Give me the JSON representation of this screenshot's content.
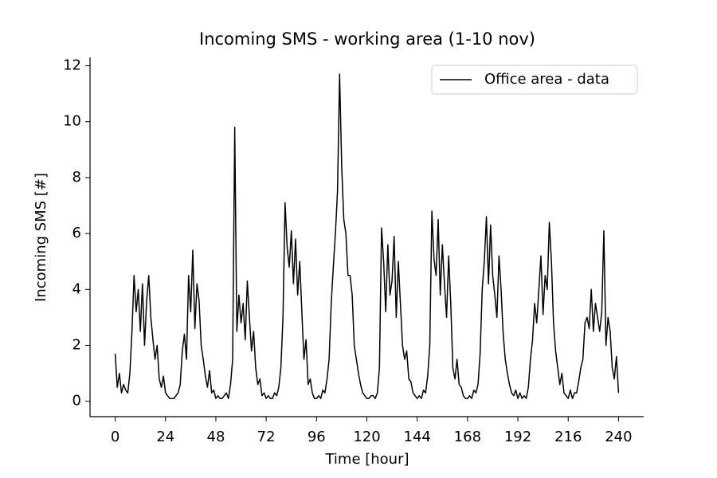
{
  "chart_data": {
    "type": "line",
    "title": "Incoming SMS - working area (1-10 nov)",
    "xlabel": "Time [hour]",
    "ylabel": "Incoming SMS [#]",
    "xlim": [
      -12,
      252
    ],
    "ylim": [
      -0.55,
      12.3
    ],
    "xticks": [
      0,
      24,
      48,
      72,
      96,
      120,
      144,
      168,
      192,
      216,
      240
    ],
    "yticks": [
      0,
      2,
      4,
      6,
      8,
      10,
      12
    ],
    "legend": "upper right",
    "x": [
      0,
      1,
      2,
      3,
      4,
      5,
      6,
      7,
      8,
      9,
      10,
      11,
      12,
      13,
      14,
      15,
      16,
      17,
      18,
      19,
      20,
      21,
      22,
      23,
      24,
      25,
      26,
      27,
      28,
      29,
      30,
      31,
      32,
      33,
      34,
      35,
      36,
      37,
      38,
      39,
      40,
      41,
      42,
      43,
      44,
      45,
      46,
      47,
      48,
      49,
      50,
      51,
      52,
      53,
      54,
      55,
      56,
      57,
      58,
      59,
      60,
      61,
      62,
      63,
      64,
      65,
      66,
      67,
      68,
      69,
      70,
      71,
      72,
      73,
      74,
      75,
      76,
      77,
      78,
      79,
      80,
      81,
      82,
      83,
      84,
      85,
      86,
      87,
      88,
      89,
      90,
      91,
      92,
      93,
      94,
      95,
      96,
      97,
      98,
      99,
      100,
      101,
      102,
      103,
      104,
      105,
      106,
      107,
      108,
      109,
      110,
      111,
      112,
      113,
      114,
      115,
      116,
      117,
      118,
      119,
      120,
      121,
      122,
      123,
      124,
      125,
      126,
      127,
      128,
      129,
      130,
      131,
      132,
      133,
      134,
      135,
      136,
      137,
      138,
      139,
      140,
      141,
      142,
      143,
      144,
      145,
      146,
      147,
      148,
      149,
      150,
      151,
      152,
      153,
      154,
      155,
      156,
      157,
      158,
      159,
      160,
      161,
      162,
      163,
      164,
      165,
      166,
      167,
      168,
      169,
      170,
      171,
      172,
      173,
      174,
      175,
      176,
      177,
      178,
      179,
      180,
      181,
      182,
      183,
      184,
      185,
      186,
      187,
      188,
      189,
      190,
      191,
      192,
      193,
      194,
      195,
      196,
      197,
      198,
      199,
      200,
      201,
      202,
      203,
      204,
      205,
      206,
      207,
      208,
      209,
      210,
      211,
      212,
      213,
      214,
      215,
      216,
      217,
      218,
      219,
      220,
      221,
      222,
      223,
      224,
      225,
      226,
      227,
      228,
      229,
      230,
      231,
      232,
      233,
      234,
      235,
      236,
      237,
      238,
      239,
      240
    ],
    "series": [
      {
        "name": "Office area - data",
        "color": "#000000",
        "values": [
          1.7,
          0.5,
          1.0,
          0.3,
          0.6,
          0.4,
          0.3,
          1.0,
          2.5,
          4.5,
          3.2,
          4.0,
          2.5,
          4.2,
          2.0,
          3.6,
          4.5,
          3.0,
          2.2,
          1.5,
          2.0,
          0.8,
          0.5,
          0.9,
          0.3,
          0.2,
          0.1,
          0.1,
          0.1,
          0.2,
          0.3,
          0.6,
          1.8,
          2.4,
          1.5,
          4.5,
          3.2,
          5.4,
          2.6,
          4.2,
          3.6,
          2.0,
          1.5,
          0.9,
          0.5,
          1.1,
          0.3,
          0.4,
          0.1,
          0.2,
          0.1,
          0.1,
          0.2,
          0.3,
          0.1,
          0.6,
          1.5,
          9.8,
          2.5,
          3.8,
          2.8,
          3.5,
          2.2,
          4.3,
          3.0,
          1.8,
          2.5,
          1.2,
          0.6,
          0.8,
          0.2,
          0.3,
          0.1,
          0.2,
          0.1,
          0.1,
          0.3,
          0.2,
          0.5,
          1.2,
          3.0,
          7.1,
          5.5,
          4.8,
          6.1,
          4.2,
          5.8,
          3.8,
          5.0,
          3.2,
          1.5,
          2.2,
          0.6,
          0.8,
          0.3,
          0.1,
          0.1,
          0.2,
          0.1,
          0.4,
          0.3,
          0.8,
          1.5,
          3.5,
          4.8,
          6.0,
          7.5,
          11.7,
          8.4,
          6.5,
          6.0,
          4.5,
          4.5,
          3.8,
          2.0,
          1.5,
          1.0,
          0.6,
          0.3,
          0.2,
          0.1,
          0.1,
          0.2,
          0.2,
          0.1,
          0.3,
          1.2,
          6.2,
          5.0,
          3.2,
          5.6,
          3.8,
          4.3,
          5.9,
          3.0,
          5.0,
          3.5,
          2.0,
          1.5,
          1.8,
          0.8,
          0.7,
          0.3,
          0.2,
          0.1,
          0.2,
          0.1,
          0.4,
          0.3,
          0.9,
          2.0,
          6.8,
          5.1,
          4.5,
          6.5,
          3.8,
          5.6,
          4.2,
          3.0,
          5.2,
          3.5,
          1.2,
          0.8,
          1.5,
          0.6,
          0.5,
          0.2,
          0.1,
          0.1,
          0.2,
          0.1,
          0.4,
          0.3,
          0.6,
          1.7,
          4.0,
          5.0,
          6.6,
          4.2,
          6.3,
          4.5,
          3.8,
          3.0,
          5.2,
          4.0,
          2.4,
          1.5,
          1.0,
          0.6,
          0.3,
          0.2,
          0.4,
          0.1,
          0.3,
          0.1,
          0.2,
          0.1,
          0.5,
          1.5,
          2.2,
          3.5,
          2.8,
          4.0,
          5.2,
          3.1,
          4.5,
          4.0,
          6.4,
          5.0,
          2.8,
          1.8,
          1.2,
          0.6,
          1.0,
          0.3,
          0.2,
          0.1,
          0.4,
          0.1,
          0.3,
          0.3,
          0.7,
          1.2,
          1.5,
          2.8,
          3.0,
          2.6,
          4.0,
          2.5,
          3.5,
          3.0,
          2.5,
          3.2,
          6.1,
          2.0,
          3.0,
          2.5,
          1.2,
          0.8,
          1.6,
          0.3
        ]
      }
    ]
  }
}
